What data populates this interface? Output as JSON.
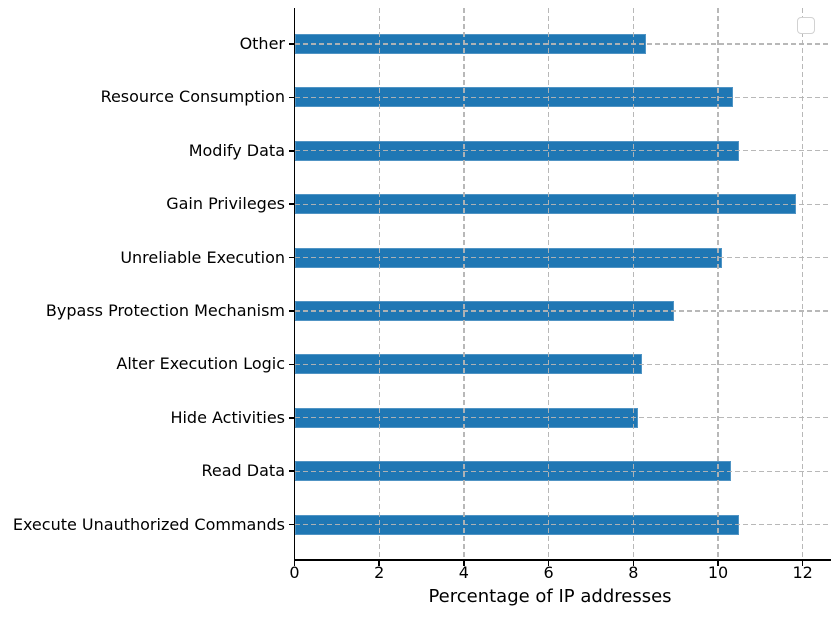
{
  "chart_data": {
    "type": "bar",
    "orientation": "horizontal",
    "title": "",
    "xlabel": "Percentage of IP addresses",
    "ylabel": "",
    "categories": [
      "Other",
      "Resource Consumption",
      "Modify Data",
      "Gain Privileges",
      "Unreliable Execution",
      "Bypass Protection Mechanism",
      "Alter Execution Logic",
      "Hide Activities",
      "Read Data",
      "Execute Unauthorized Commands"
    ],
    "values": [
      8.3,
      10.35,
      10.5,
      11.85,
      10.1,
      8.95,
      8.2,
      8.1,
      10.3,
      10.5
    ],
    "xticks": [
      0,
      2,
      4,
      6,
      8,
      10,
      12
    ],
    "xlim": [
      0,
      12.7
    ],
    "grid": {
      "style": "dashed",
      "axes": "both",
      "drawn_over_bars": true
    },
    "legend": {
      "visible": true,
      "entries": [],
      "position": "upper-right"
    },
    "colors": {
      "bar": "#1f77b4",
      "grid": "#b4b4b4",
      "spine": "#000000",
      "text": "#000000",
      "background": "#ffffff"
    }
  }
}
